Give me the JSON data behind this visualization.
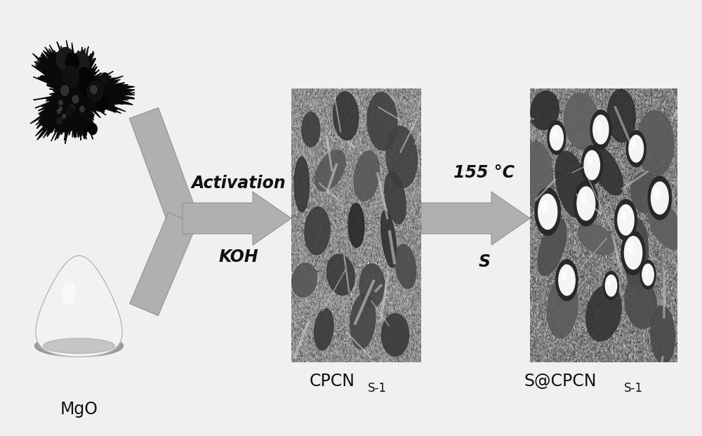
{
  "bg_color": "#f0f0f0",
  "arrow_color": "#b0b0b0",
  "arrow_edge_color": "#909090",
  "text_activation": "Activation",
  "text_koh": "KOH",
  "text_temp": "155 °C",
  "text_s": "S",
  "text_cpcn_main": "CPCN",
  "text_cpcn_sub": "S-1",
  "text_scpcn_main": "S@CPCN",
  "text_scpcn_sub": "S-1",
  "text_mgo": "MgO",
  "fig_width": 10.0,
  "fig_height": 6.21,
  "dpi": 100,
  "font_size_main_label": 17,
  "font_size_sub_label": 12,
  "font_size_step_label": 17
}
